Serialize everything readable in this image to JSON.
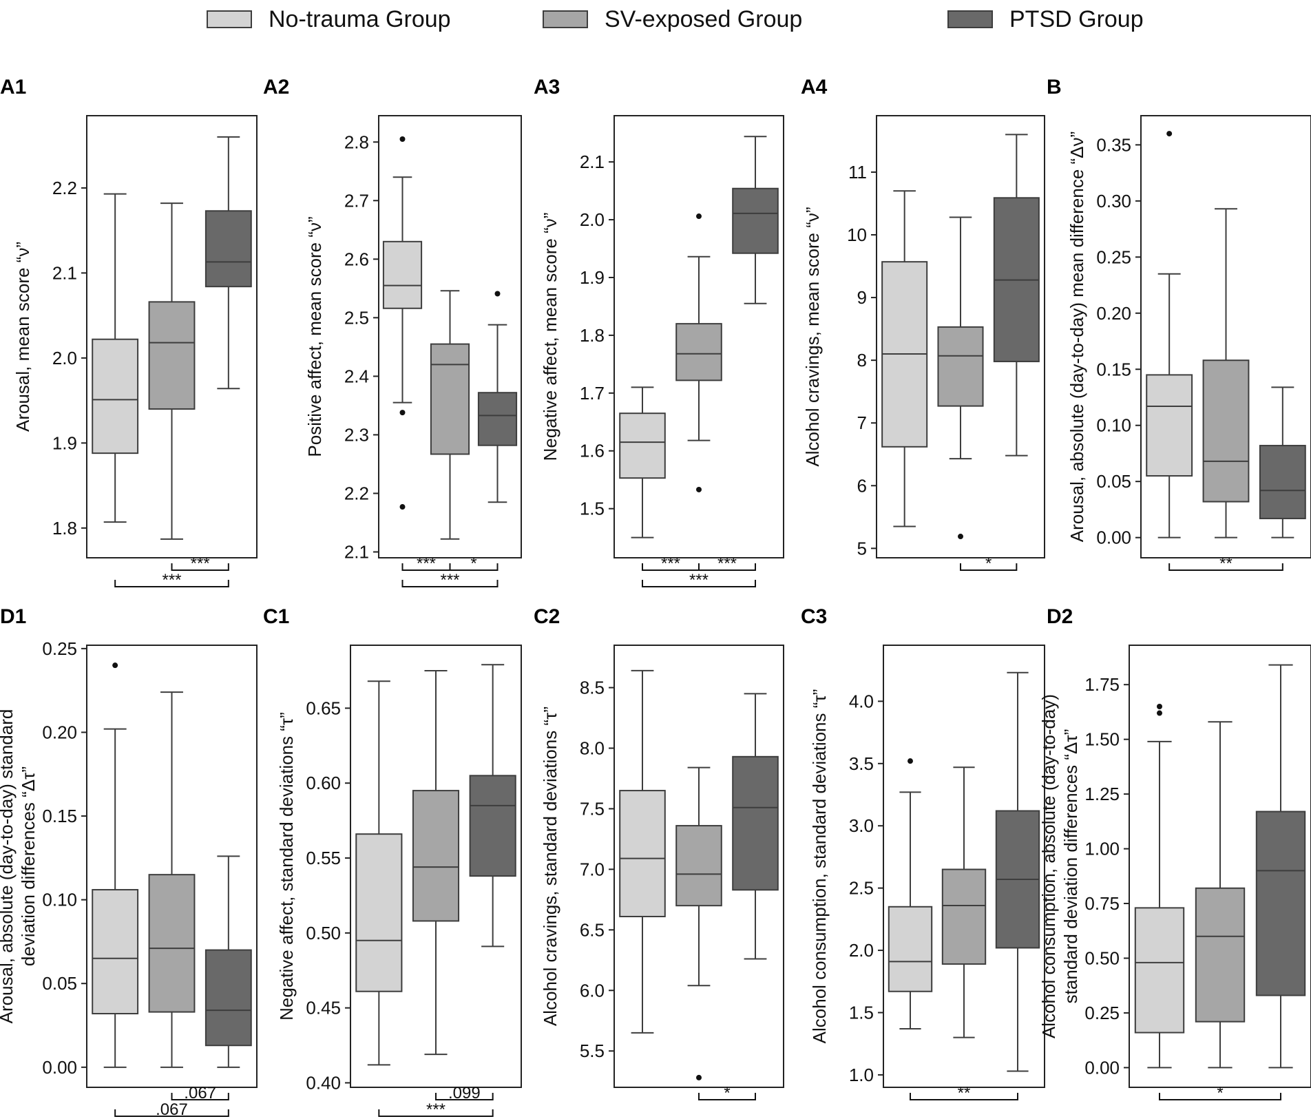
{
  "legend": [
    {
      "label": "No-trauma Group",
      "color": "#d3d3d3"
    },
    {
      "label": "SV-exposed Group",
      "color": "#a6a6a6"
    },
    {
      "label": "PTSD Group",
      "color": "#696969"
    }
  ],
  "chart_data": [
    {
      "type": "box",
      "panel": "A1",
      "ylabel": "Arousal, mean score “ν”",
      "ylim": [
        1.765,
        2.285
      ],
      "yticks": [
        1.8,
        1.9,
        2.0,
        2.1,
        2.2
      ],
      "tick_labels": [
        "1.8",
        "1.9",
        "2.0",
        "2.1",
        "2.2"
      ],
      "groups": [
        {
          "name": "No-trauma Group",
          "whisker_low": 1.807,
          "q1": 1.888,
          "median": 1.951,
          "q3": 2.022,
          "whisker_high": 2.193,
          "outliers": []
        },
        {
          "name": "SV-exposed Group",
          "whisker_low": 1.787,
          "q1": 1.94,
          "median": 2.018,
          "q3": 2.066,
          "whisker_high": 2.182,
          "outliers": []
        },
        {
          "name": "PTSD Group",
          "whisker_low": 1.964,
          "q1": 2.084,
          "median": 2.113,
          "q3": 2.173,
          "whisker_high": 2.26,
          "outliers": []
        }
      ],
      "significance": [
        {
          "from": 1,
          "to": 2,
          "label": "***",
          "level": 1
        },
        {
          "from": 0,
          "to": 2,
          "label": "***",
          "level": 2
        }
      ]
    },
    {
      "type": "box",
      "panel": "A2",
      "ylabel": "Positive affect, mean score “ν”",
      "ylim": [
        2.09,
        2.845
      ],
      "yticks": [
        2.1,
        2.2,
        2.3,
        2.4,
        2.5,
        2.6,
        2.7,
        2.8
      ],
      "tick_labels": [
        "2.1",
        "2.2",
        "2.3",
        "2.4",
        "2.5",
        "2.6",
        "2.7",
        "2.8"
      ],
      "groups": [
        {
          "name": "No-trauma Group",
          "whisker_low": 2.355,
          "q1": 2.516,
          "median": 2.555,
          "q3": 2.63,
          "whisker_high": 2.74,
          "outliers": [
            2.805,
            2.338,
            2.177
          ]
        },
        {
          "name": "SV-exposed Group",
          "whisker_low": 2.122,
          "q1": 2.267,
          "median": 2.42,
          "q3": 2.455,
          "whisker_high": 2.546,
          "outliers": []
        },
        {
          "name": "PTSD Group",
          "whisker_low": 2.185,
          "q1": 2.282,
          "median": 2.333,
          "q3": 2.372,
          "whisker_high": 2.488,
          "outliers": [
            2.541
          ]
        }
      ],
      "significance": [
        {
          "from": 0,
          "to": 1,
          "label": "***",
          "level": 1
        },
        {
          "from": 1,
          "to": 2,
          "label": "*",
          "level": 1
        },
        {
          "from": 0,
          "to": 2,
          "label": "***",
          "level": 2
        }
      ]
    },
    {
      "type": "box",
      "panel": "A3",
      "ylabel": "Negative affect, mean score “ν”",
      "ylim": [
        1.415,
        2.18
      ],
      "yticks": [
        1.5,
        1.6,
        1.7,
        1.8,
        1.9,
        2.0,
        2.1
      ],
      "tick_labels": [
        "1.5",
        "1.6",
        "1.7",
        "1.8",
        "1.9",
        "2.0",
        "2.1"
      ],
      "groups": [
        {
          "name": "No-trauma Group",
          "whisker_low": 1.45,
          "q1": 1.553,
          "median": 1.615,
          "q3": 1.665,
          "whisker_high": 1.71,
          "outliers": []
        },
        {
          "name": "SV-exposed Group",
          "whisker_low": 1.618,
          "q1": 1.722,
          "median": 1.768,
          "q3": 1.82,
          "whisker_high": 1.936,
          "outliers": [
            2.006,
            1.533
          ]
        },
        {
          "name": "PTSD Group",
          "whisker_low": 1.855,
          "q1": 1.942,
          "median": 2.011,
          "q3": 2.054,
          "whisker_high": 2.144,
          "outliers": []
        }
      ],
      "significance": [
        {
          "from": 0,
          "to": 1,
          "label": "***",
          "level": 1
        },
        {
          "from": 1,
          "to": 2,
          "label": "***",
          "level": 1
        },
        {
          "from": 0,
          "to": 2,
          "label": "***",
          "level": 2
        }
      ]
    },
    {
      "type": "box",
      "panel": "A4",
      "ylabel": "Alcohol cravings, mean score “ν”",
      "ylim": [
        4.85,
        11.9
      ],
      "yticks": [
        5,
        6,
        7,
        8,
        9,
        10,
        11
      ],
      "tick_labels": [
        "5",
        "6",
        "7",
        "8",
        "9",
        "10",
        "11"
      ],
      "groups": [
        {
          "name": "No-trauma Group",
          "whisker_low": 5.35,
          "q1": 6.62,
          "median": 8.1,
          "q3": 9.57,
          "whisker_high": 10.7,
          "outliers": []
        },
        {
          "name": "SV-exposed Group",
          "whisker_low": 6.43,
          "q1": 7.27,
          "median": 8.07,
          "q3": 8.53,
          "whisker_high": 10.28,
          "outliers": [
            5.19
          ]
        },
        {
          "name": "PTSD Group",
          "whisker_low": 6.48,
          "q1": 7.98,
          "median": 9.28,
          "q3": 10.59,
          "whisker_high": 11.6,
          "outliers": []
        }
      ],
      "significance": [
        {
          "from": 1,
          "to": 2,
          "label": "*",
          "level": 1
        }
      ]
    },
    {
      "type": "box",
      "panel": "B",
      "ylabel": "Arousal, absolute (day-to-day) mean difference “Δν”",
      "ylim": [
        -0.018,
        0.376
      ],
      "yticks": [
        0.0,
        0.05,
        0.1,
        0.15,
        0.2,
        0.25,
        0.3,
        0.35
      ],
      "tick_labels": [
        "0.00",
        "0.05",
        "0.10",
        "0.15",
        "0.20",
        "0.25",
        "0.30",
        "0.35"
      ],
      "groups": [
        {
          "name": "No-trauma Group",
          "whisker_low": 0.0,
          "q1": 0.055,
          "median": 0.117,
          "q3": 0.145,
          "whisker_high": 0.235,
          "outliers": [
            0.36
          ]
        },
        {
          "name": "SV-exposed Group",
          "whisker_low": 0.0,
          "q1": 0.032,
          "median": 0.068,
          "q3": 0.158,
          "whisker_high": 0.293,
          "outliers": []
        },
        {
          "name": "PTSD Group",
          "whisker_low": 0.0,
          "q1": 0.017,
          "median": 0.042,
          "q3": 0.082,
          "whisker_high": 0.134,
          "outliers": []
        }
      ],
      "significance": [
        {
          "from": 0,
          "to": 2,
          "label": "**",
          "level": 1
        }
      ]
    },
    {
      "type": "box",
      "panel": "D1",
      "ylabel": [
        "Arousal, absolute (day-to-day) standard",
        "deviation differences “Δτ”"
      ],
      "ylim": [
        -0.012,
        0.252
      ],
      "yticks": [
        0.0,
        0.05,
        0.1,
        0.15,
        0.2,
        0.25
      ],
      "tick_labels": [
        "0.00",
        "0.05",
        "0.10",
        "0.15",
        "0.20",
        "0.25"
      ],
      "groups": [
        {
          "name": "No-trauma Group",
          "whisker_low": 0.0,
          "q1": 0.032,
          "median": 0.065,
          "q3": 0.106,
          "whisker_high": 0.202,
          "outliers": [
            0.24
          ]
        },
        {
          "name": "SV-exposed Group",
          "whisker_low": 0.0,
          "q1": 0.033,
          "median": 0.071,
          "q3": 0.115,
          "whisker_high": 0.224,
          "outliers": []
        },
        {
          "name": "PTSD Group",
          "whisker_low": 0.0,
          "q1": 0.013,
          "median": 0.034,
          "q3": 0.07,
          "whisker_high": 0.126,
          "outliers": []
        }
      ],
      "significance": [
        {
          "from": 1,
          "to": 2,
          "label": ".067",
          "level": 1
        },
        {
          "from": 0,
          "to": 2,
          "label": ".067",
          "level": 2
        }
      ]
    },
    {
      "type": "box",
      "panel": "C1",
      "ylabel": "Negative affect, standard deviations “τ”",
      "ylim": [
        0.397,
        0.692
      ],
      "yticks": [
        0.4,
        0.45,
        0.5,
        0.55,
        0.6,
        0.65
      ],
      "tick_labels": [
        "0.40",
        "0.45",
        "0.50",
        "0.55",
        "0.60",
        "0.65"
      ],
      "groups": [
        {
          "name": "No-trauma Group",
          "whisker_low": 0.412,
          "q1": 0.461,
          "median": 0.495,
          "q3": 0.566,
          "whisker_high": 0.668,
          "outliers": []
        },
        {
          "name": "SV-exposed Group",
          "whisker_low": 0.419,
          "q1": 0.508,
          "median": 0.544,
          "q3": 0.595,
          "whisker_high": 0.675,
          "outliers": []
        },
        {
          "name": "PTSD Group",
          "whisker_low": 0.491,
          "q1": 0.538,
          "median": 0.585,
          "q3": 0.605,
          "whisker_high": 0.679,
          "outliers": []
        }
      ],
      "significance": [
        {
          "from": 1,
          "to": 2,
          "label": ".099",
          "level": 1
        },
        {
          "from": 0,
          "to": 2,
          "label": "***",
          "level": 2
        }
      ]
    },
    {
      "type": "box",
      "panel": "C2",
      "ylabel": "Alcohol cravings, standard deviations “τ”",
      "ylim": [
        5.2,
        8.85
      ],
      "yticks": [
        5.5,
        6.0,
        6.5,
        7.0,
        7.5,
        8.0,
        8.5
      ],
      "tick_labels": [
        "5.5",
        "6.0",
        "6.5",
        "7.0",
        "7.5",
        "8.0",
        "8.5"
      ],
      "groups": [
        {
          "name": "No-trauma Group",
          "whisker_low": 5.65,
          "q1": 6.61,
          "median": 7.09,
          "q3": 7.65,
          "whisker_high": 8.64,
          "outliers": []
        },
        {
          "name": "SV-exposed Group",
          "whisker_low": 6.04,
          "q1": 6.7,
          "median": 6.96,
          "q3": 7.36,
          "whisker_high": 7.84,
          "outliers": [
            5.28
          ]
        },
        {
          "name": "PTSD Group",
          "whisker_low": 6.26,
          "q1": 6.83,
          "median": 7.51,
          "q3": 7.93,
          "whisker_high": 8.45,
          "outliers": []
        }
      ],
      "significance": [
        {
          "from": 1,
          "to": 2,
          "label": "*",
          "level": 1
        }
      ]
    },
    {
      "type": "box",
      "panel": "C3",
      "ylabel": "Alcohol consumption, standard deviations “τ”",
      "ylim": [
        0.9,
        4.45
      ],
      "yticks": [
        1.0,
        1.5,
        2.0,
        2.5,
        3.0,
        3.5,
        4.0
      ],
      "tick_labels": [
        "1.0",
        "1.5",
        "2.0",
        "2.5",
        "3.0",
        "3.5",
        "4.0"
      ],
      "groups": [
        {
          "name": "No-trauma Group",
          "whisker_low": 1.37,
          "q1": 1.67,
          "median": 1.91,
          "q3": 2.35,
          "whisker_high": 3.27,
          "outliers": [
            3.52
          ]
        },
        {
          "name": "SV-exposed Group",
          "whisker_low": 1.3,
          "q1": 1.89,
          "median": 2.36,
          "q3": 2.65,
          "whisker_high": 3.47,
          "outliers": []
        },
        {
          "name": "PTSD Group",
          "whisker_low": 1.03,
          "q1": 2.02,
          "median": 2.57,
          "q3": 3.12,
          "whisker_high": 4.23,
          "outliers": []
        }
      ],
      "significance": [
        {
          "from": 0,
          "to": 2,
          "label": "**",
          "level": 1
        }
      ]
    },
    {
      "type": "box",
      "panel": "D2",
      "ylabel": [
        "Alcohol consumption, absolute (day-to-day)",
        "standard deviation differences “Δτ”"
      ],
      "ylim": [
        -0.09,
        1.93
      ],
      "yticks": [
        0.0,
        0.25,
        0.5,
        0.75,
        1.0,
        1.25,
        1.5,
        1.75
      ],
      "tick_labels": [
        "0.00",
        "0.25",
        "0.50",
        "0.75",
        "1.00",
        "1.25",
        "1.50",
        "1.75"
      ],
      "groups": [
        {
          "name": "No-trauma Group",
          "whisker_low": 0.0,
          "q1": 0.16,
          "median": 0.48,
          "q3": 0.73,
          "whisker_high": 1.49,
          "outliers": [
            1.65,
            1.62
          ]
        },
        {
          "name": "SV-exposed Group",
          "whisker_low": 0.0,
          "q1": 0.21,
          "median": 0.6,
          "q3": 0.82,
          "whisker_high": 1.58,
          "outliers": []
        },
        {
          "name": "PTSD Group",
          "whisker_low": 0.0,
          "q1": 0.33,
          "median": 0.9,
          "q3": 1.17,
          "whisker_high": 1.84,
          "outliers": []
        }
      ],
      "significance": [
        {
          "from": 0,
          "to": 2,
          "label": "*",
          "level": 1
        }
      ]
    }
  ]
}
